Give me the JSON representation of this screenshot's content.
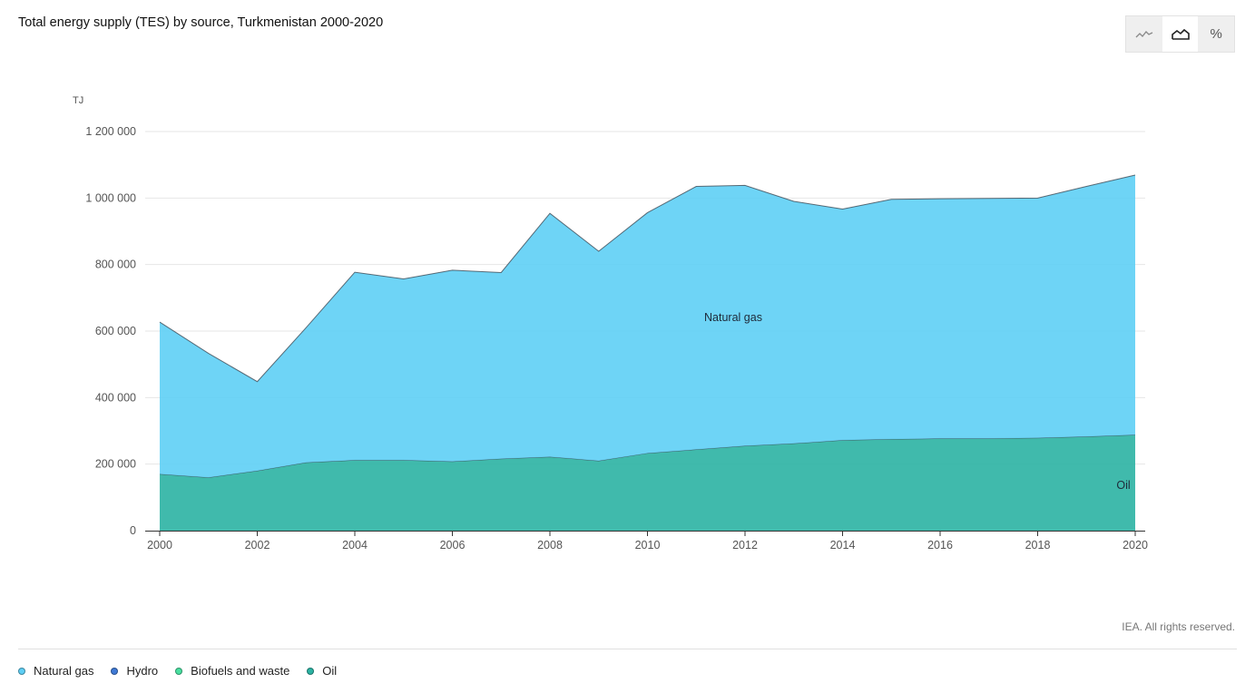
{
  "title": "Total energy supply (TES) by source, Turkmenistan 2000-2020",
  "toggles": [
    {
      "icon": "line-chart-icon",
      "label": "",
      "active": false
    },
    {
      "icon": "area-chart-icon",
      "label": "",
      "active": true
    },
    {
      "icon": "percent-icon",
      "label": "%",
      "active": false
    }
  ],
  "credit": "IEA. All rights reserved.",
  "legend": [
    {
      "label": "Natural gas",
      "color": "#5ecff5"
    },
    {
      "label": "Hydro",
      "color": "#3f7ad6"
    },
    {
      "label": "Biofuels and waste",
      "color": "#48e0a0"
    },
    {
      "label": "Oil",
      "color": "#2bb3a3"
    }
  ],
  "chart_data": {
    "type": "area",
    "stacked": true,
    "title": "Total energy supply (TES) by source, Turkmenistan 2000-2020",
    "ylabel": "TJ",
    "xlabel": "",
    "ylim": [
      0,
      1200000
    ],
    "yticks": [
      0,
      200000,
      400000,
      600000,
      800000,
      1000000,
      1200000
    ],
    "ytick_labels": [
      "0",
      "200 000",
      "400 000",
      "600 000",
      "800 000",
      "1 000 000",
      "1 200 000"
    ],
    "xticks": [
      2000,
      2002,
      2004,
      2006,
      2008,
      2010,
      2012,
      2014,
      2016,
      2018,
      2020
    ],
    "grid": true,
    "x": [
      2000,
      2001,
      2002,
      2003,
      2004,
      2005,
      2006,
      2007,
      2008,
      2009,
      2010,
      2011,
      2012,
      2013,
      2014,
      2015,
      2016,
      2017,
      2018,
      2019,
      2020
    ],
    "series": [
      {
        "name": "Oil",
        "color": "#2bb3a3",
        "label": "Oil",
        "values": [
          170000,
          160000,
          180000,
          205000,
          212000,
          212000,
          208000,
          216000,
          222000,
          210000,
          233000,
          244000,
          255000,
          262000,
          272000,
          275000,
          277000,
          277000,
          279000,
          283000,
          288000
        ]
      },
      {
        "name": "Natural gas",
        "color": "#5ecff5",
        "label": "Natural gas",
        "values": [
          457000,
          373000,
          268000,
          405000,
          565000,
          545000,
          575000,
          560000,
          732000,
          630000,
          723000,
          791000,
          783000,
          728000,
          695000,
          721000,
          721000,
          722000,
          721000,
          752000,
          781000
        ]
      }
    ]
  }
}
